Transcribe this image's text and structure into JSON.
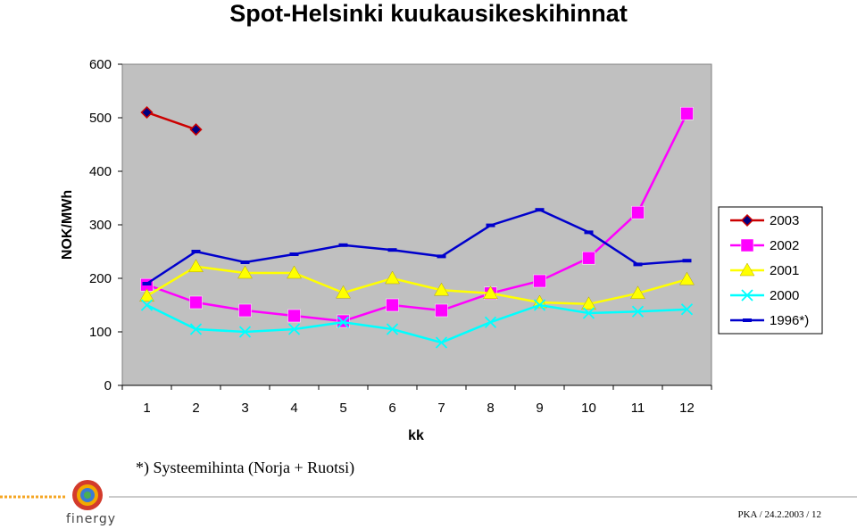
{
  "title": "Spot-Helsinki kuukausikeskihinnat",
  "footnote": "*) Systeemihinta (Norja + Ruotsi)",
  "brand": "finergy",
  "page_ref": "PKA / 24.2.2003 / 12",
  "colors": {
    "plot_bg": "#c0c0c0",
    "brand_orange": "#f5a623"
  },
  "chart_data": {
    "type": "line",
    "title": "Spot-Helsinki kuukausikeskihinnat",
    "xlabel": "kk",
    "ylabel": "NOK/MWh",
    "categories": [
      "1",
      "2",
      "3",
      "4",
      "5",
      "6",
      "7",
      "8",
      "9",
      "10",
      "11",
      "12"
    ],
    "ylim": [
      0,
      600
    ],
    "yticks": [
      "0",
      "100",
      "200",
      "300",
      "400",
      "500",
      "600"
    ],
    "grid": false,
    "legend_position": "right",
    "series": [
      {
        "name": "2003",
        "color": "#cc0000",
        "marker": "diamond",
        "marker_fill": "#000080",
        "values": [
          510,
          478,
          null,
          null,
          null,
          null,
          null,
          null,
          null,
          null,
          null,
          null
        ]
      },
      {
        "name": "2002",
        "color": "#ff00ff",
        "marker": "square",
        "marker_fill": "#ff00ff",
        "values": [
          188,
          155,
          140,
          130,
          120,
          150,
          140,
          172,
          195,
          238,
          323,
          508
        ]
      },
      {
        "name": "2001",
        "color": "#ffff00",
        "marker": "triangle",
        "marker_fill": "#ffff00",
        "values": [
          167,
          222,
          210,
          210,
          173,
          200,
          178,
          172,
          155,
          152,
          172,
          198
        ]
      },
      {
        "name": "2000",
        "color": "#00ffff",
        "marker": "x",
        "marker_fill": "#00ffff",
        "values": [
          150,
          105,
          100,
          105,
          118,
          105,
          80,
          118,
          150,
          135,
          138,
          142
        ]
      },
      {
        "name": "1996*)",
        "color": "#0000cc",
        "marker": "dash",
        "marker_fill": "#0000cc",
        "values": [
          190,
          250,
          230,
          245,
          262,
          253,
          241,
          299,
          328,
          286,
          226,
          233
        ]
      }
    ]
  }
}
